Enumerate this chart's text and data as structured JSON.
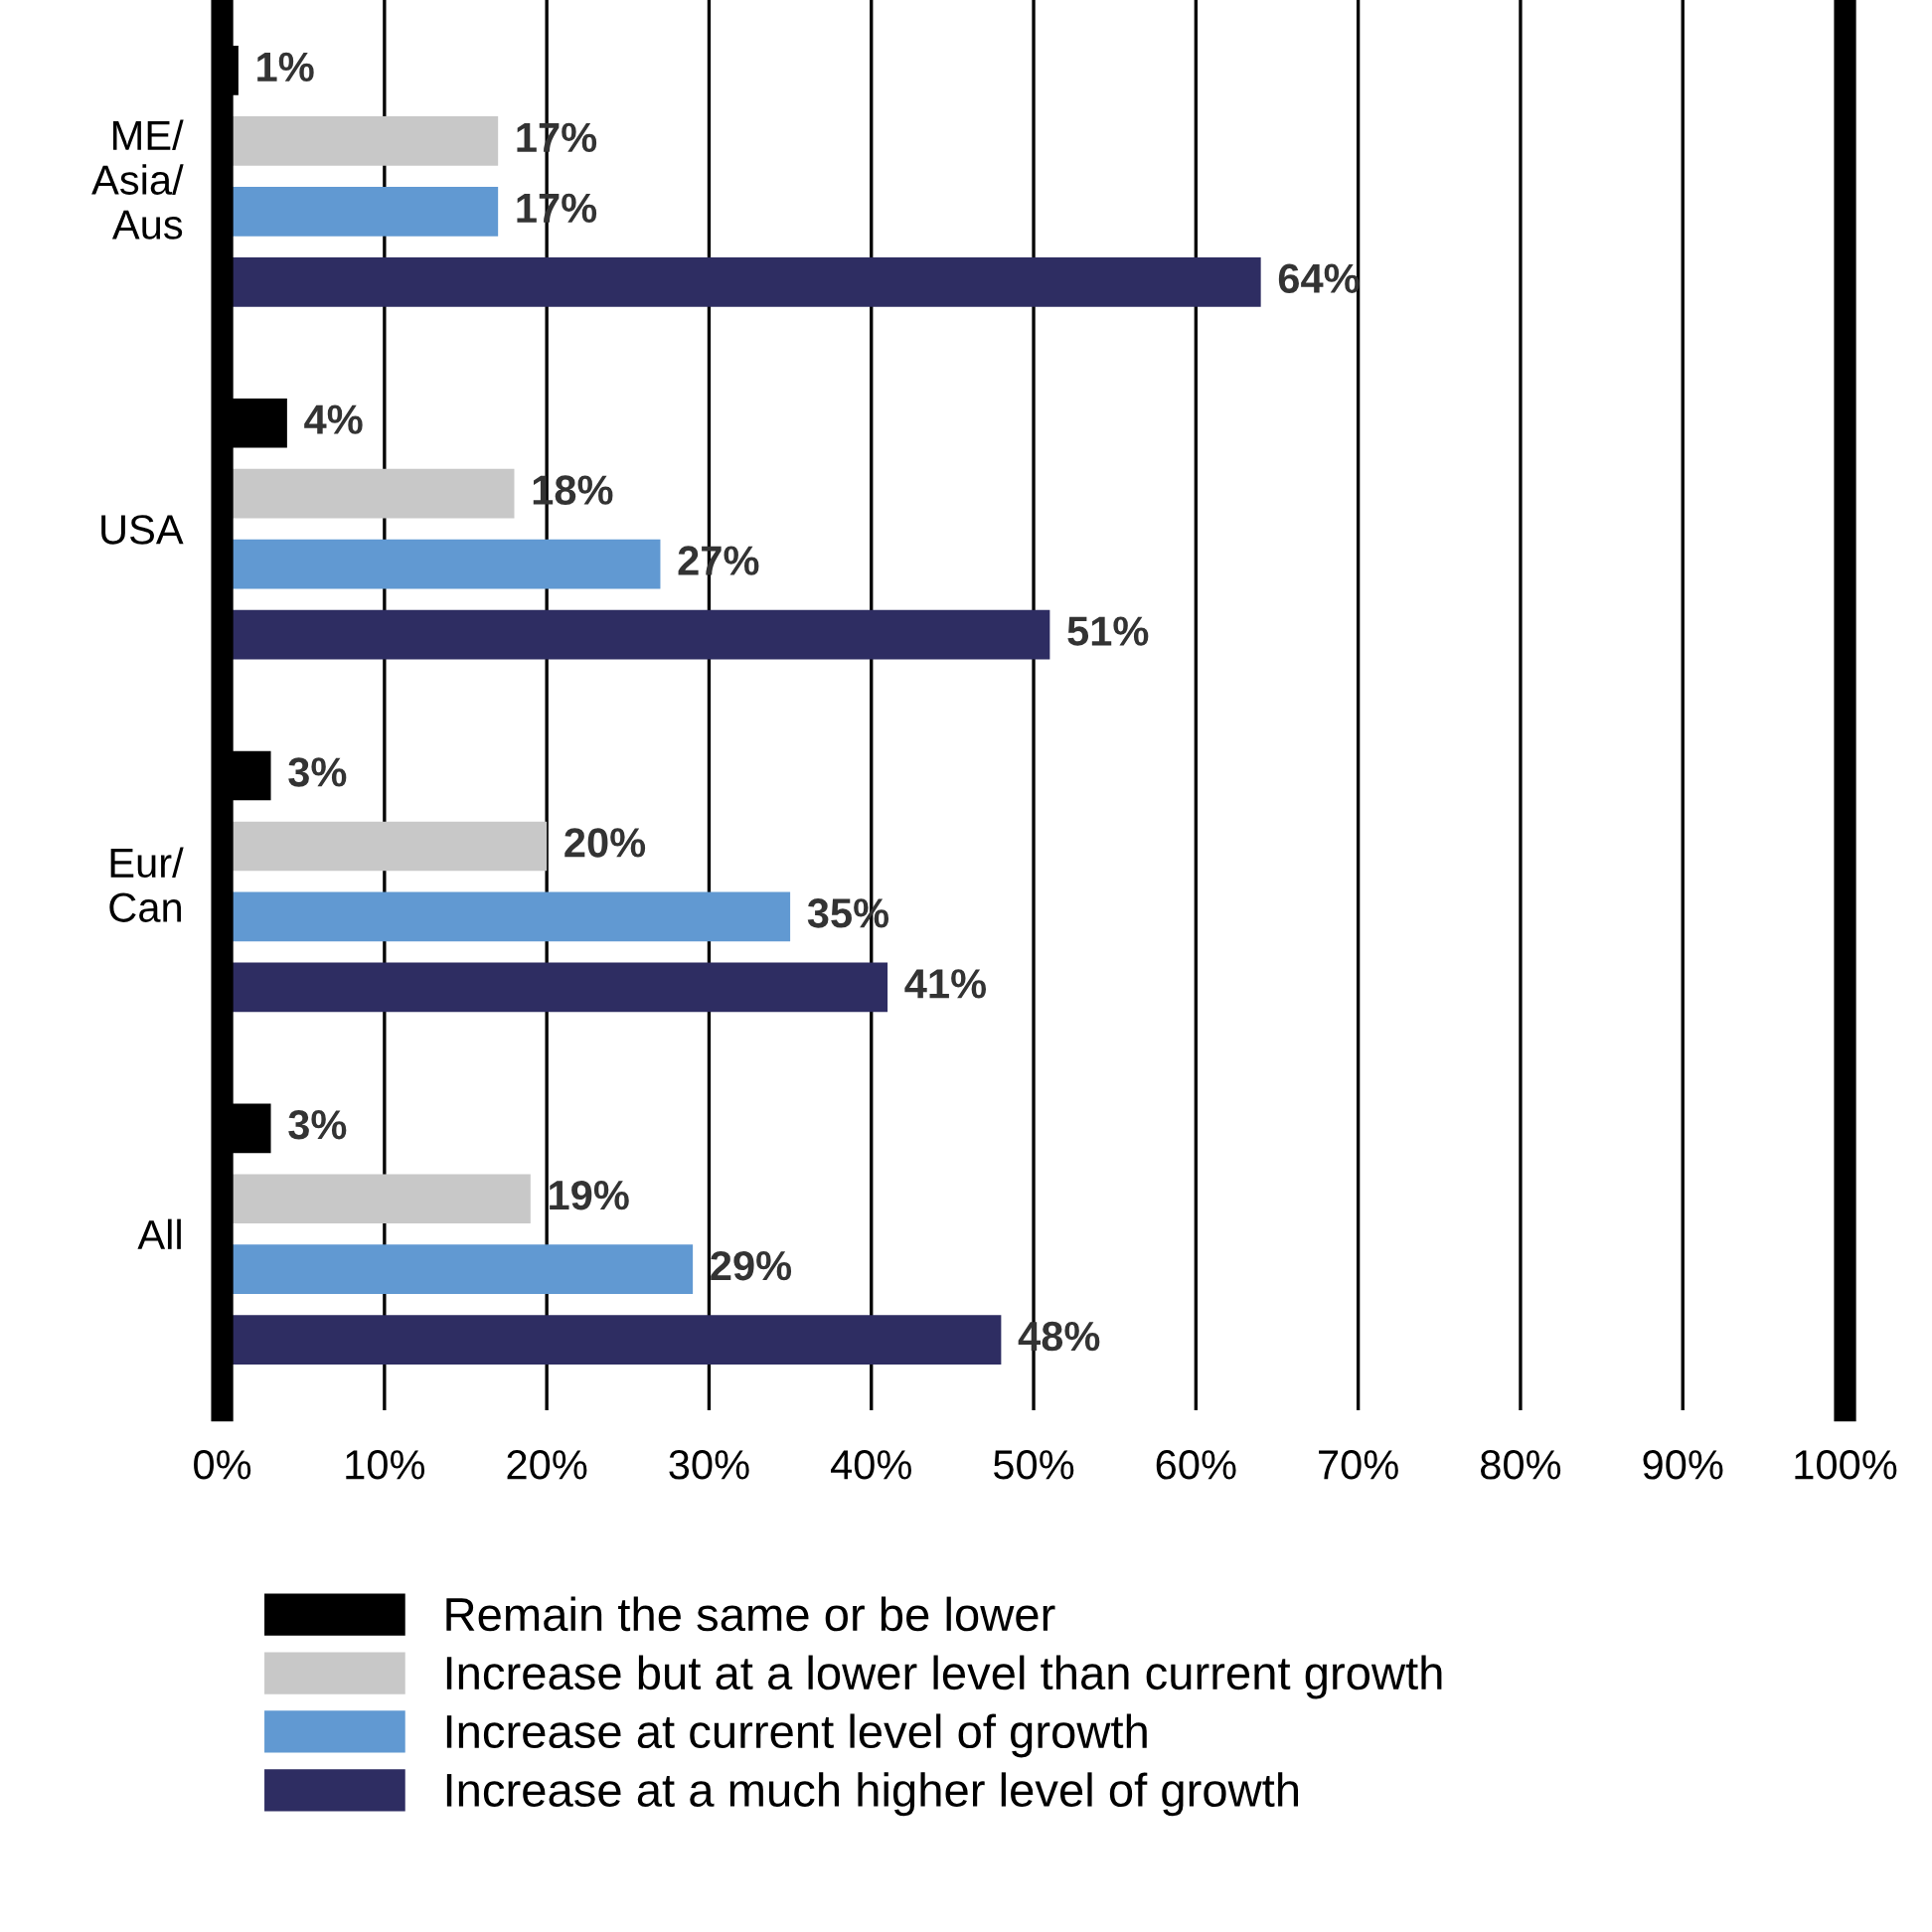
{
  "chart_data": {
    "type": "bar",
    "orientation": "horizontal",
    "categories": [
      "ME/\nAsia/\nAus",
      "USA",
      "Eur/\nCan",
      "All"
    ],
    "series": [
      {
        "name": "Remain the same or be lower",
        "color": "#000000",
        "values": [
          1,
          4,
          3,
          3
        ],
        "value_labels": [
          "1%",
          "4%",
          "3%",
          "3%"
        ]
      },
      {
        "name": "Increase but at a lower level than current growth",
        "color": "#c8c8c8",
        "values": [
          17,
          18,
          20,
          19
        ],
        "value_labels": [
          "17%",
          "18%",
          "20%",
          "19%"
        ]
      },
      {
        "name": "Increase at current level of growth",
        "color": "#6199d2",
        "values": [
          17,
          27,
          35,
          29
        ],
        "value_labels": [
          "17%",
          "27%",
          "35%",
          "29%"
        ]
      },
      {
        "name": "Increase at a much higher level of growth",
        "color": "#2e2d62",
        "values": [
          64,
          51,
          41,
          48
        ],
        "value_labels": [
          "64%",
          "51%",
          "41%",
          "48%"
        ]
      }
    ],
    "xlim": [
      0,
      100
    ],
    "xticks": [
      {
        "value": 0,
        "label": "0%"
      },
      {
        "value": 10,
        "label": "10%"
      },
      {
        "value": 20,
        "label": "20%"
      },
      {
        "value": 30,
        "label": "30%"
      },
      {
        "value": 40,
        "label": "40%"
      },
      {
        "value": 50,
        "label": "50%"
      },
      {
        "value": 60,
        "label": "60%"
      },
      {
        "value": 70,
        "label": "70%"
      },
      {
        "value": 80,
        "label": "80%"
      },
      {
        "value": 90,
        "label": "90%"
      },
      {
        "value": 100,
        "label": "100%"
      }
    ],
    "grid": "x",
    "legend": "bottom"
  }
}
